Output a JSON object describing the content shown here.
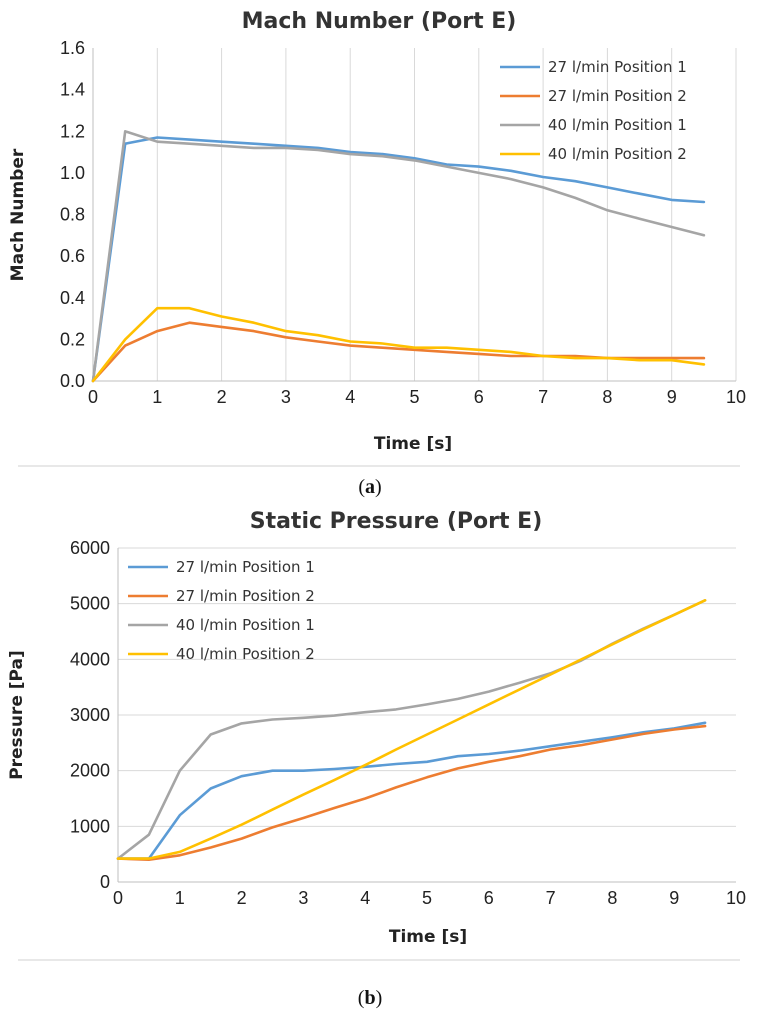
{
  "chart_data": [
    {
      "type": "line",
      "title": "Mach Number (Port E)",
      "xlabel": "Time [s]",
      "ylabel": "Mach Number",
      "xlim": [
        0,
        10
      ],
      "ylim": [
        0,
        1.6
      ],
      "x_ticks": [
        "0",
        "1",
        "2",
        "3",
        "4",
        "5",
        "6",
        "7",
        "8",
        "9",
        "10"
      ],
      "y_ticks": [
        "0.0",
        "0.2",
        "0.4",
        "0.6",
        "0.8",
        "1.0",
        "1.2",
        "1.4",
        "1.6"
      ],
      "grid": "vertical",
      "legend_position": "top-right",
      "caption_letter": "a",
      "series": [
        {
          "name": "27 l/min Position 1",
          "color": "#5b9bd5",
          "x": [
            0,
            0.5,
            1,
            1.5,
            2,
            2.5,
            3,
            3.5,
            4,
            4.5,
            5,
            5.5,
            6,
            6.5,
            7,
            7.5,
            8,
            8.5,
            9,
            9.5
          ],
          "y": [
            0,
            1.14,
            1.17,
            1.16,
            1.15,
            1.14,
            1.13,
            1.12,
            1.1,
            1.09,
            1.07,
            1.04,
            1.03,
            1.01,
            0.98,
            0.96,
            0.93,
            0.9,
            0.87,
            0.86
          ]
        },
        {
          "name": "27 l/min Position 2",
          "color": "#ed7d31",
          "x": [
            0,
            0.5,
            1,
            1.5,
            2,
            2.5,
            3,
            3.5,
            4,
            4.5,
            5,
            5.5,
            6,
            6.5,
            7,
            7.5,
            8,
            8.5,
            9,
            9.5
          ],
          "y": [
            0,
            0.17,
            0.24,
            0.28,
            0.26,
            0.24,
            0.21,
            0.19,
            0.17,
            0.16,
            0.15,
            0.14,
            0.13,
            0.12,
            0.12,
            0.12,
            0.11,
            0.11,
            0.11,
            0.11
          ]
        },
        {
          "name": "40 l/min Position 1",
          "color": "#a5a5a5",
          "x": [
            0,
            0.5,
            1,
            1.5,
            2,
            2.5,
            3,
            3.5,
            4,
            4.5,
            5,
            5.5,
            6,
            6.5,
            7,
            7.5,
            8,
            8.5,
            9,
            9.5
          ],
          "y": [
            0,
            1.2,
            1.15,
            1.14,
            1.13,
            1.12,
            1.12,
            1.11,
            1.09,
            1.08,
            1.06,
            1.03,
            1.0,
            0.97,
            0.93,
            0.88,
            0.82,
            0.78,
            0.74,
            0.7
          ]
        },
        {
          "name": "40 l/min Position 2",
          "color": "#ffc000",
          "x": [
            0,
            0.5,
            1,
            1.5,
            2,
            2.5,
            3,
            3.5,
            4,
            4.5,
            5,
            5.5,
            6,
            6.5,
            7,
            7.5,
            8,
            8.5,
            9,
            9.5
          ],
          "y": [
            0,
            0.2,
            0.35,
            0.35,
            0.31,
            0.28,
            0.24,
            0.22,
            0.19,
            0.18,
            0.16,
            0.16,
            0.15,
            0.14,
            0.12,
            0.11,
            0.11,
            0.1,
            0.1,
            0.08
          ]
        }
      ]
    },
    {
      "type": "line",
      "title": "Static Pressure (Port E)",
      "xlabel": "Time [s]",
      "ylabel": "Pressure [Pa]",
      "xlim": [
        0,
        10
      ],
      "ylim": [
        0,
        6000
      ],
      "x_ticks": [
        "0",
        "1",
        "2",
        "3",
        "4",
        "5",
        "6",
        "7",
        "8",
        "9",
        "10"
      ],
      "y_ticks": [
        "0",
        "1000",
        "2000",
        "3000",
        "4000",
        "5000",
        "6000"
      ],
      "grid": "horizontal",
      "legend_position": "top-left",
      "caption_letter": "b",
      "series": [
        {
          "name": "27 l/min Position 1",
          "color": "#5b9bd5",
          "x": [
            0,
            0.5,
            1,
            1.5,
            2,
            2.5,
            3,
            3.5,
            4,
            4.5,
            5,
            5.5,
            6,
            6.5,
            7,
            7.5,
            8,
            8.5,
            9,
            9.5
          ],
          "y": [
            420,
            420,
            1200,
            1680,
            1900,
            2000,
            2000,
            2030,
            2070,
            2120,
            2160,
            2260,
            2300,
            2360,
            2440,
            2520,
            2600,
            2690,
            2760,
            2860
          ]
        },
        {
          "name": "27 l/min Position 2",
          "color": "#ed7d31",
          "x": [
            0,
            0.5,
            1,
            1.5,
            2,
            2.5,
            3,
            3.5,
            4,
            4.5,
            5,
            5.5,
            6,
            6.5,
            7,
            7.5,
            8,
            8.5,
            9,
            9.5
          ],
          "y": [
            420,
            400,
            480,
            620,
            780,
            980,
            1150,
            1330,
            1500,
            1700,
            1880,
            2040,
            2160,
            2260,
            2380,
            2460,
            2560,
            2660,
            2740,
            2800
          ]
        },
        {
          "name": "40 l/min Position 1",
          "color": "#a5a5a5",
          "x": [
            0,
            0.5,
            1,
            1.5,
            2,
            2.5,
            3,
            3.5,
            4,
            4.5,
            5,
            5.5,
            6,
            6.5,
            7,
            7.5,
            8,
            8.5,
            9,
            9.5
          ],
          "y": [
            420,
            850,
            2000,
            2650,
            2850,
            2920,
            2950,
            2990,
            3050,
            3100,
            3190,
            3290,
            3420,
            3580,
            3750,
            3980,
            4280,
            4550,
            4800,
            5060
          ]
        },
        {
          "name": "40 l/min Position 2",
          "color": "#ffc000",
          "x": [
            0,
            0.5,
            1,
            1.5,
            2,
            2.5,
            3,
            3.5,
            4,
            4.5,
            5,
            5.5,
            6,
            6.5,
            7,
            7.5,
            8,
            8.5,
            9,
            9.5
          ],
          "y": [
            420,
            420,
            540,
            780,
            1030,
            1300,
            1570,
            1830,
            2100,
            2380,
            2650,
            2920,
            3190,
            3460,
            3730,
            4000,
            4270,
            4540,
            4800,
            5060
          ]
        }
      ]
    }
  ]
}
